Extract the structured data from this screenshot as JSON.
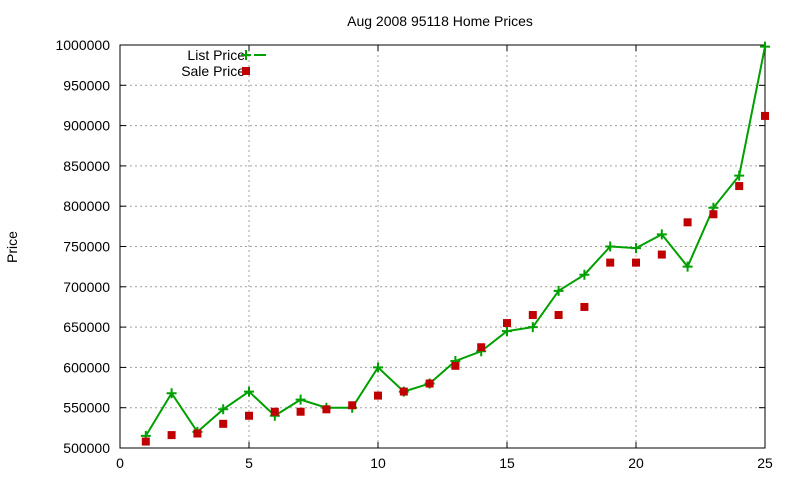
{
  "chart_data": {
    "type": "line",
    "title": "Aug 2008 95118 Home Prices",
    "xlabel": "",
    "ylabel": "Price",
    "xlim": [
      0,
      25
    ],
    "ylim": [
      500000,
      1000000
    ],
    "xticks": [
      "0",
      "5",
      "10",
      "15",
      "20",
      "25"
    ],
    "yticks": [
      "500000",
      "550000",
      "600000",
      "650000",
      "700000",
      "750000",
      "800000",
      "850000",
      "900000",
      "950000",
      "1000000"
    ],
    "grid": true,
    "legend_position": "top-left",
    "series": [
      {
        "name": "List Price",
        "style": "line-with-plus-markers",
        "color": "#00a000",
        "x": [
          1,
          2,
          3,
          4,
          5,
          6,
          7,
          8,
          9,
          10,
          11,
          12,
          13,
          14,
          15,
          16,
          17,
          18,
          19,
          20,
          21,
          22,
          23,
          24,
          25
        ],
        "values": [
          515000,
          568000,
          520000,
          548000,
          570000,
          540000,
          560000,
          550000,
          550000,
          600000,
          570000,
          580000,
          608000,
          620000,
          645000,
          650000,
          695000,
          715000,
          750000,
          748000,
          765000,
          725000,
          798000,
          838000,
          998000
        ]
      },
      {
        "name": "Sale Price",
        "style": "square-markers",
        "color": "#c00000",
        "x": [
          1,
          2,
          3,
          4,
          5,
          6,
          7,
          8,
          9,
          10,
          11,
          12,
          13,
          14,
          15,
          16,
          17,
          18,
          19,
          20,
          21,
          22,
          23,
          24,
          25
        ],
        "values": [
          508000,
          516000,
          518000,
          530000,
          540000,
          545000,
          545000,
          548000,
          553000,
          565000,
          570000,
          580000,
          602000,
          625000,
          655000,
          665000,
          665000,
          675000,
          730000,
          730000,
          740000,
          780000,
          790000,
          825000,
          912000
        ]
      }
    ]
  }
}
